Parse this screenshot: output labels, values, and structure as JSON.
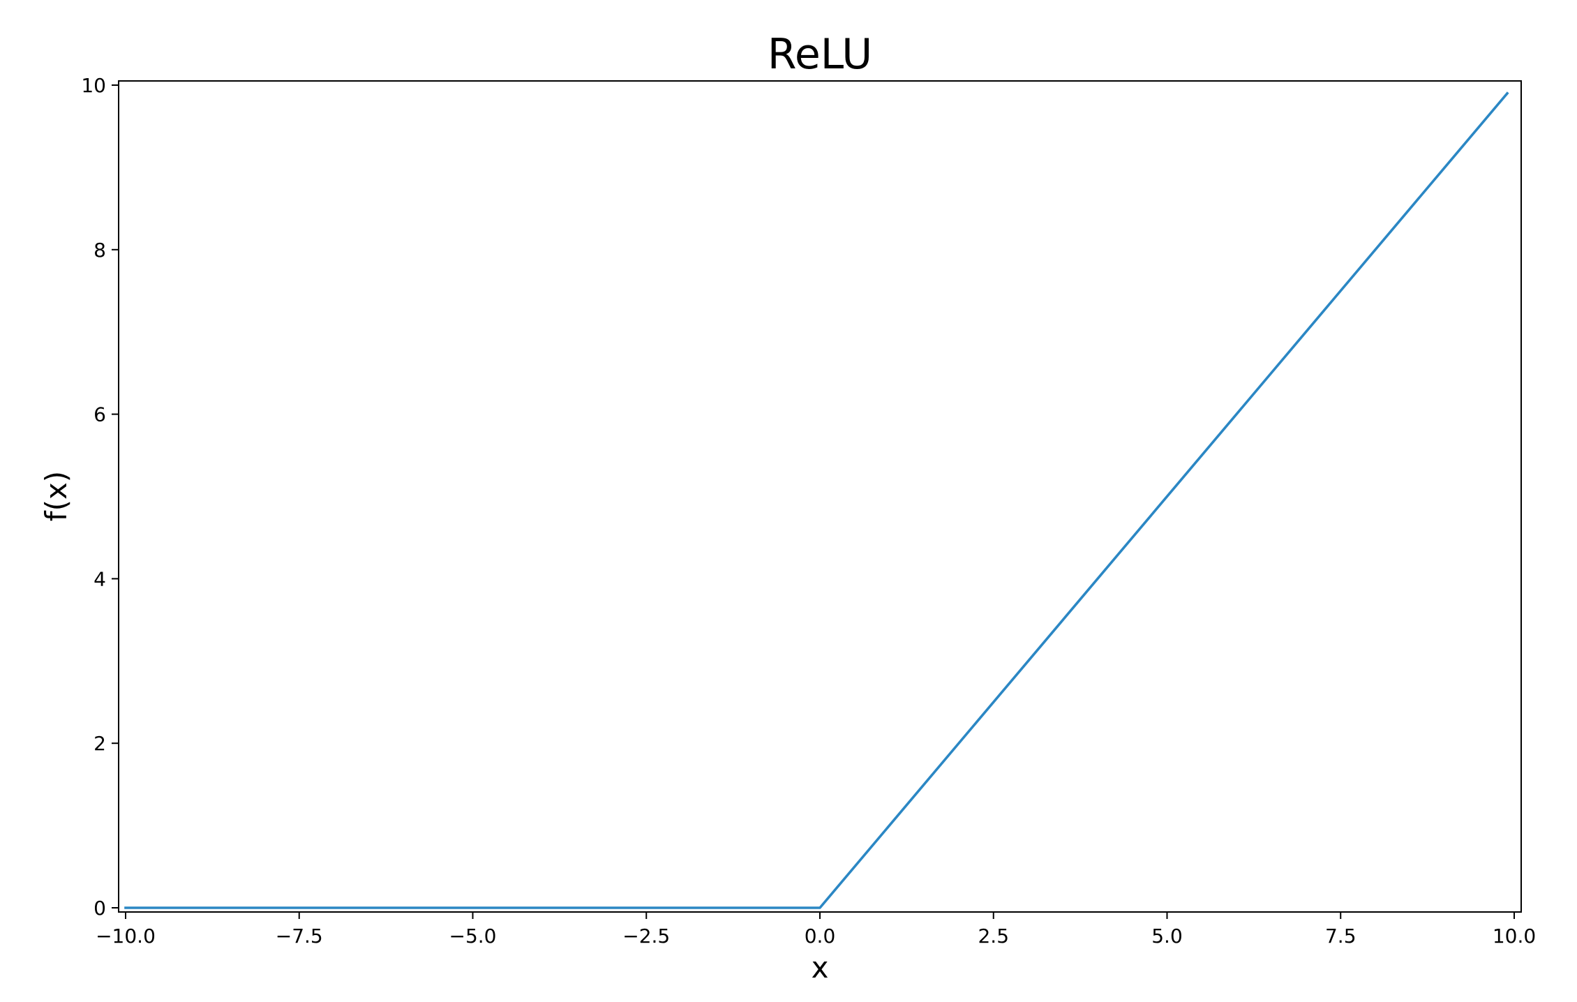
{
  "chart_data": {
    "type": "line",
    "title": "ReLU",
    "xlabel": "x",
    "ylabel": "f(x)",
    "xlim": [
      -10,
      10
    ],
    "ylim": [
      0,
      10
    ],
    "grid": false,
    "x_ticks": [
      -10.0,
      -7.5,
      -5.0,
      -2.5,
      0.0,
      2.5,
      5.0,
      7.5,
      10.0
    ],
    "x_tick_labels": [
      "−10.0",
      "−7.5",
      "−5.0",
      "−2.5",
      "0.0",
      "2.5",
      "5.0",
      "7.5",
      "10.0"
    ],
    "y_ticks": [
      0,
      2,
      4,
      6,
      8,
      10
    ],
    "y_tick_labels": [
      "0",
      "2",
      "4",
      "6",
      "8",
      "10"
    ],
    "series": [
      {
        "color": "#2b87c4",
        "x": [
          -10.0,
          0.0,
          9.9
        ],
        "y": [
          0.0,
          0.0,
          9.9
        ]
      }
    ]
  }
}
